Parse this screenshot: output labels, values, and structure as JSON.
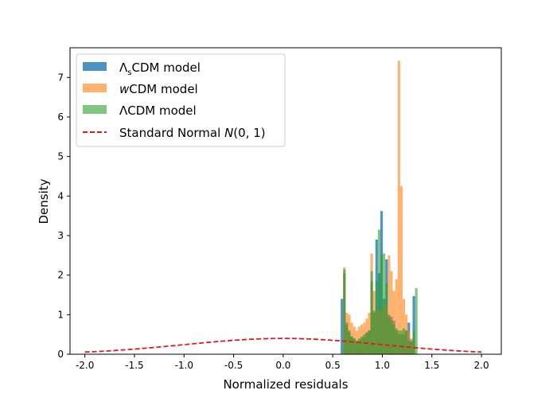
{
  "chart_data": {
    "type": "histogram",
    "xlabel": "Normalized residuals",
    "ylabel": "Density",
    "xlim": [
      -2.15,
      2.2
    ],
    "ylim": [
      0,
      7.75
    ],
    "xticks": [
      "-2.0",
      "-1.5",
      "-1.0",
      "-0.5",
      "0.0",
      "0.5",
      "1.0",
      "1.5",
      "2.0"
    ],
    "yticks": [
      "0",
      "1",
      "2",
      "3",
      "4",
      "5",
      "6",
      "7"
    ],
    "grid": false,
    "legend_position": "top-left",
    "series": [
      {
        "name_main": "Λ",
        "name_sub": "s",
        "name_rest": "CDM model",
        "color": "#1f77b4",
        "bins": [
          [
            0.58,
            0.605,
            1.4
          ],
          [
            0.605,
            0.63,
            2.05
          ],
          [
            0.63,
            0.655,
            0.8
          ],
          [
            0.655,
            0.68,
            0.6
          ],
          [
            0.68,
            0.705,
            0.45
          ],
          [
            0.705,
            0.73,
            0.4
          ],
          [
            0.73,
            0.755,
            0.3
          ],
          [
            0.755,
            0.78,
            0.35
          ],
          [
            0.78,
            0.805,
            0.4
          ],
          [
            0.805,
            0.83,
            0.45
          ],
          [
            0.83,
            0.855,
            0.55
          ],
          [
            0.855,
            0.88,
            0.6
          ],
          [
            0.88,
            0.905,
            1.85
          ],
          [
            0.905,
            0.93,
            1.05
          ],
          [
            0.93,
            0.955,
            2.9
          ],
          [
            0.955,
            0.98,
            2.05
          ],
          [
            0.98,
            1.005,
            3.62
          ],
          [
            1.005,
            1.03,
            1.4
          ],
          [
            1.03,
            1.055,
            2.4
          ],
          [
            1.055,
            1.08,
            1.0
          ],
          [
            1.08,
            1.105,
            0.95
          ],
          [
            1.105,
            1.13,
            0.85
          ],
          [
            1.13,
            1.155,
            0.6
          ],
          [
            1.155,
            1.18,
            0.5
          ],
          [
            1.18,
            1.205,
            0.5
          ],
          [
            1.205,
            1.23,
            0.5
          ],
          [
            1.23,
            1.255,
            0.6
          ],
          [
            1.255,
            1.28,
            0.8
          ],
          [
            1.28,
            1.305,
            0.35
          ],
          [
            1.305,
            1.33,
            1.47
          ]
        ]
      },
      {
        "name_main": "w",
        "name_sub": "",
        "name_rest": "CDM model",
        "color": "#ff7f0e",
        "bins": [
          [
            0.605,
            0.63,
            2.2
          ],
          [
            0.63,
            0.655,
            1.05
          ],
          [
            0.655,
            0.68,
            1.0
          ],
          [
            0.68,
            0.705,
            0.8
          ],
          [
            0.705,
            0.73,
            0.7
          ],
          [
            0.73,
            0.755,
            0.6
          ],
          [
            0.755,
            0.78,
            0.7
          ],
          [
            0.78,
            0.805,
            0.75
          ],
          [
            0.805,
            0.83,
            0.8
          ],
          [
            0.83,
            0.855,
            0.9
          ],
          [
            0.855,
            0.88,
            1.05
          ],
          [
            0.88,
            0.905,
            2.55
          ],
          [
            0.905,
            0.93,
            1.6
          ],
          [
            0.93,
            0.955,
            1.1
          ],
          [
            0.955,
            0.98,
            1.1
          ],
          [
            0.98,
            1.005,
            1.1
          ],
          [
            1.005,
            1.03,
            1.3
          ],
          [
            1.03,
            1.055,
            1.2
          ],
          [
            1.055,
            1.08,
            2.5
          ],
          [
            1.08,
            1.105,
            2.1
          ],
          [
            1.105,
            1.13,
            1.6
          ],
          [
            1.13,
            1.155,
            1.9
          ],
          [
            1.155,
            1.18,
            7.42
          ],
          [
            1.18,
            1.205,
            4.25
          ],
          [
            1.205,
            1.23,
            1.4
          ],
          [
            1.23,
            1.255,
            1.0
          ],
          [
            1.255,
            1.28,
            0.6
          ],
          [
            1.28,
            1.305,
            0.4
          ],
          [
            1.305,
            1.33,
            0.3
          ]
        ]
      },
      {
        "name_main": "Λ",
        "name_sub": "",
        "name_rest": "CDM model",
        "color": "#2ca02c",
        "bins": [
          [
            0.605,
            0.63,
            2.15
          ],
          [
            0.63,
            0.655,
            0.75
          ],
          [
            0.655,
            0.68,
            0.55
          ],
          [
            0.68,
            0.705,
            0.45
          ],
          [
            0.705,
            0.73,
            0.4
          ],
          [
            0.73,
            0.755,
            0.35
          ],
          [
            0.755,
            0.78,
            0.4
          ],
          [
            0.78,
            0.805,
            0.45
          ],
          [
            0.805,
            0.83,
            0.5
          ],
          [
            0.83,
            0.855,
            0.55
          ],
          [
            0.855,
            0.88,
            0.6
          ],
          [
            0.88,
            0.905,
            2.1
          ],
          [
            0.905,
            0.93,
            1.1
          ],
          [
            0.93,
            0.955,
            1.85
          ],
          [
            0.955,
            0.98,
            3.15
          ],
          [
            0.98,
            1.005,
            2.5
          ],
          [
            1.005,
            1.03,
            2.55
          ],
          [
            1.03,
            1.055,
            1.8
          ],
          [
            1.055,
            1.08,
            0.95
          ],
          [
            1.08,
            1.105,
            0.85
          ],
          [
            1.105,
            1.13,
            0.75
          ],
          [
            1.13,
            1.155,
            0.65
          ],
          [
            1.155,
            1.18,
            0.6
          ],
          [
            1.18,
            1.205,
            0.6
          ],
          [
            1.205,
            1.23,
            0.65
          ],
          [
            1.23,
            1.255,
            0.6
          ],
          [
            1.255,
            1.28,
            0.35
          ],
          [
            1.28,
            1.305,
            0.3
          ],
          [
            1.305,
            1.33,
            0.6
          ],
          [
            1.33,
            1.355,
            1.67
          ]
        ]
      }
    ],
    "reference_curve": {
      "name_main": "Standard Normal ",
      "name_math": "N",
      "name_rest": "(0, 1)",
      "color": "#e31a1c",
      "x_range": [
        -2.0,
        2.0
      ],
      "mean": 0,
      "std": 1
    }
  }
}
